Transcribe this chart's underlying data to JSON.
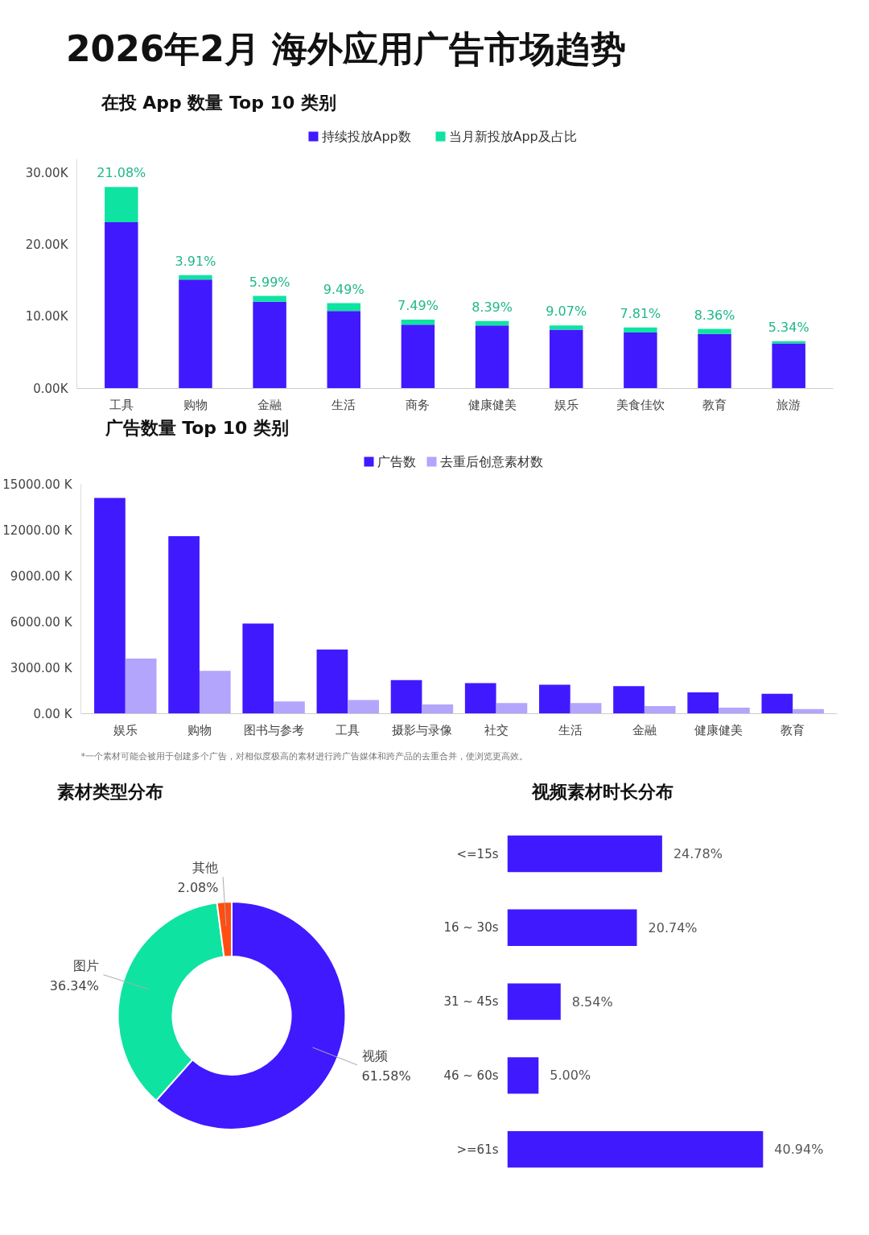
{
  "chart_data": [
    {
      "type": "other",
      "title": "2026年2月 海外应用广告市场趋势"
    },
    {
      "type": "bar",
      "title": "在投 App 数量 Top 10 类别",
      "stacked": true,
      "legend": "top",
      "categories": [
        "工具",
        "购物",
        "金融",
        "生活",
        "商务",
        "健康健美",
        "娱乐",
        "美食佳饮",
        "教育",
        "旅游"
      ],
      "ylim": [
        0,
        32
      ],
      "yticks": [
        {
          "value": 0,
          "label": "0.00K"
        },
        {
          "value": 10,
          "label": "10.00K"
        },
        {
          "value": 20,
          "label": "20.00K"
        },
        {
          "value": 30,
          "label": "30.00K"
        }
      ],
      "series": [
        {
          "name": "持续投放App数",
          "color": "#4119ff",
          "values": [
            23.2,
            15.2,
            12.1,
            10.8,
            8.9,
            8.8,
            8.2,
            7.8,
            7.6,
            6.3
          ]
        },
        {
          "name": "当月新投放App及占比",
          "color": "#0fe3a1",
          "values": [
            4.9,
            0.6,
            0.8,
            1.1,
            0.7,
            0.6,
            0.6,
            0.7,
            0.7,
            0.3
          ]
        }
      ],
      "annotations": [
        {
          "text": "21.08%",
          "x": "工具",
          "y": 28.1
        },
        {
          "text": "3.91%",
          "x": "购物",
          "y": 15.8
        },
        {
          "text": "5.99%",
          "x": "金融",
          "y": 12.9
        },
        {
          "text": "9.49%",
          "x": "生活",
          "y": 11.9
        },
        {
          "text": "7.49%",
          "x": "商务",
          "y": 9.6
        },
        {
          "text": "8.39%",
          "x": "健康健美",
          "y": 9.4
        },
        {
          "text": "9.07%",
          "x": "娱乐",
          "y": 8.8
        },
        {
          "text": "7.81%",
          "x": "美食佳饮",
          "y": 8.5
        },
        {
          "text": "8.36%",
          "x": "教育",
          "y": 8.3
        },
        {
          "text": "5.34%",
          "x": "旅游",
          "y": 6.6
        }
      ]
    },
    {
      "type": "bar",
      "title": "广告数量 Top 10 类别",
      "legend": "top",
      "categories": [
        "娱乐",
        "购物",
        "图书与参考",
        "工具",
        "摄影与录像",
        "社交",
        "生活",
        "金融",
        "健康健美",
        "教育"
      ],
      "ylim": [
        0,
        15000
      ],
      "yticks": [
        {
          "value": 0,
          "label": "0.00 K"
        },
        {
          "value": 3000,
          "label": "3000.00 K"
        },
        {
          "value": 6000,
          "label": "6000.00 K"
        },
        {
          "value": 9000,
          "label": "9000.00 K"
        },
        {
          "value": 12000,
          "label": "12000.00 K"
        },
        {
          "value": 15000,
          "label": "15000.00 K"
        }
      ],
      "annotations": [
        "*一个素材可能会被用于创建多个广告，对相似度极高的素材进行跨广告媒体和跨产品的去重合并，使浏览更高效。"
      ],
      "series": [
        {
          "name": "广告数",
          "color": "#4119ff",
          "values": [
            14100,
            11600,
            5900,
            4200,
            2200,
            2000,
            1900,
            1800,
            1400,
            1300
          ]
        },
        {
          "name": "去重后创意素材数",
          "color": "#b3a4fc",
          "values": [
            3600,
            2800,
            800,
            900,
            600,
            700,
            700,
            500,
            400,
            300
          ]
        }
      ]
    },
    {
      "type": "donut",
      "title": "素材类型分布",
      "categories": [
        "视频",
        "图片",
        "其他"
      ],
      "values": [
        61.58,
        36.34,
        2.08
      ],
      "colors": [
        "#4119ff",
        "#0fe3a1",
        "#ff4e12"
      ],
      "value_labels": [
        "61.58%",
        "36.34%",
        "2.08%"
      ]
    },
    {
      "type": "bar",
      "title": "视频素材时长分布",
      "orientation": "horizontal",
      "tick_labels": "y",
      "categories": [
        "<=15s",
        "16 ~ 30s",
        "31 ~ 45s",
        "46 ~ 60s",
        ">=61s"
      ],
      "values": [
        24.78,
        20.74,
        8.54,
        5.0,
        40.94
      ],
      "color": "#4119ff",
      "value_labels": [
        "24.78%",
        "20.74%",
        "8.54%",
        "5.00%",
        "40.94%"
      ]
    }
  ]
}
